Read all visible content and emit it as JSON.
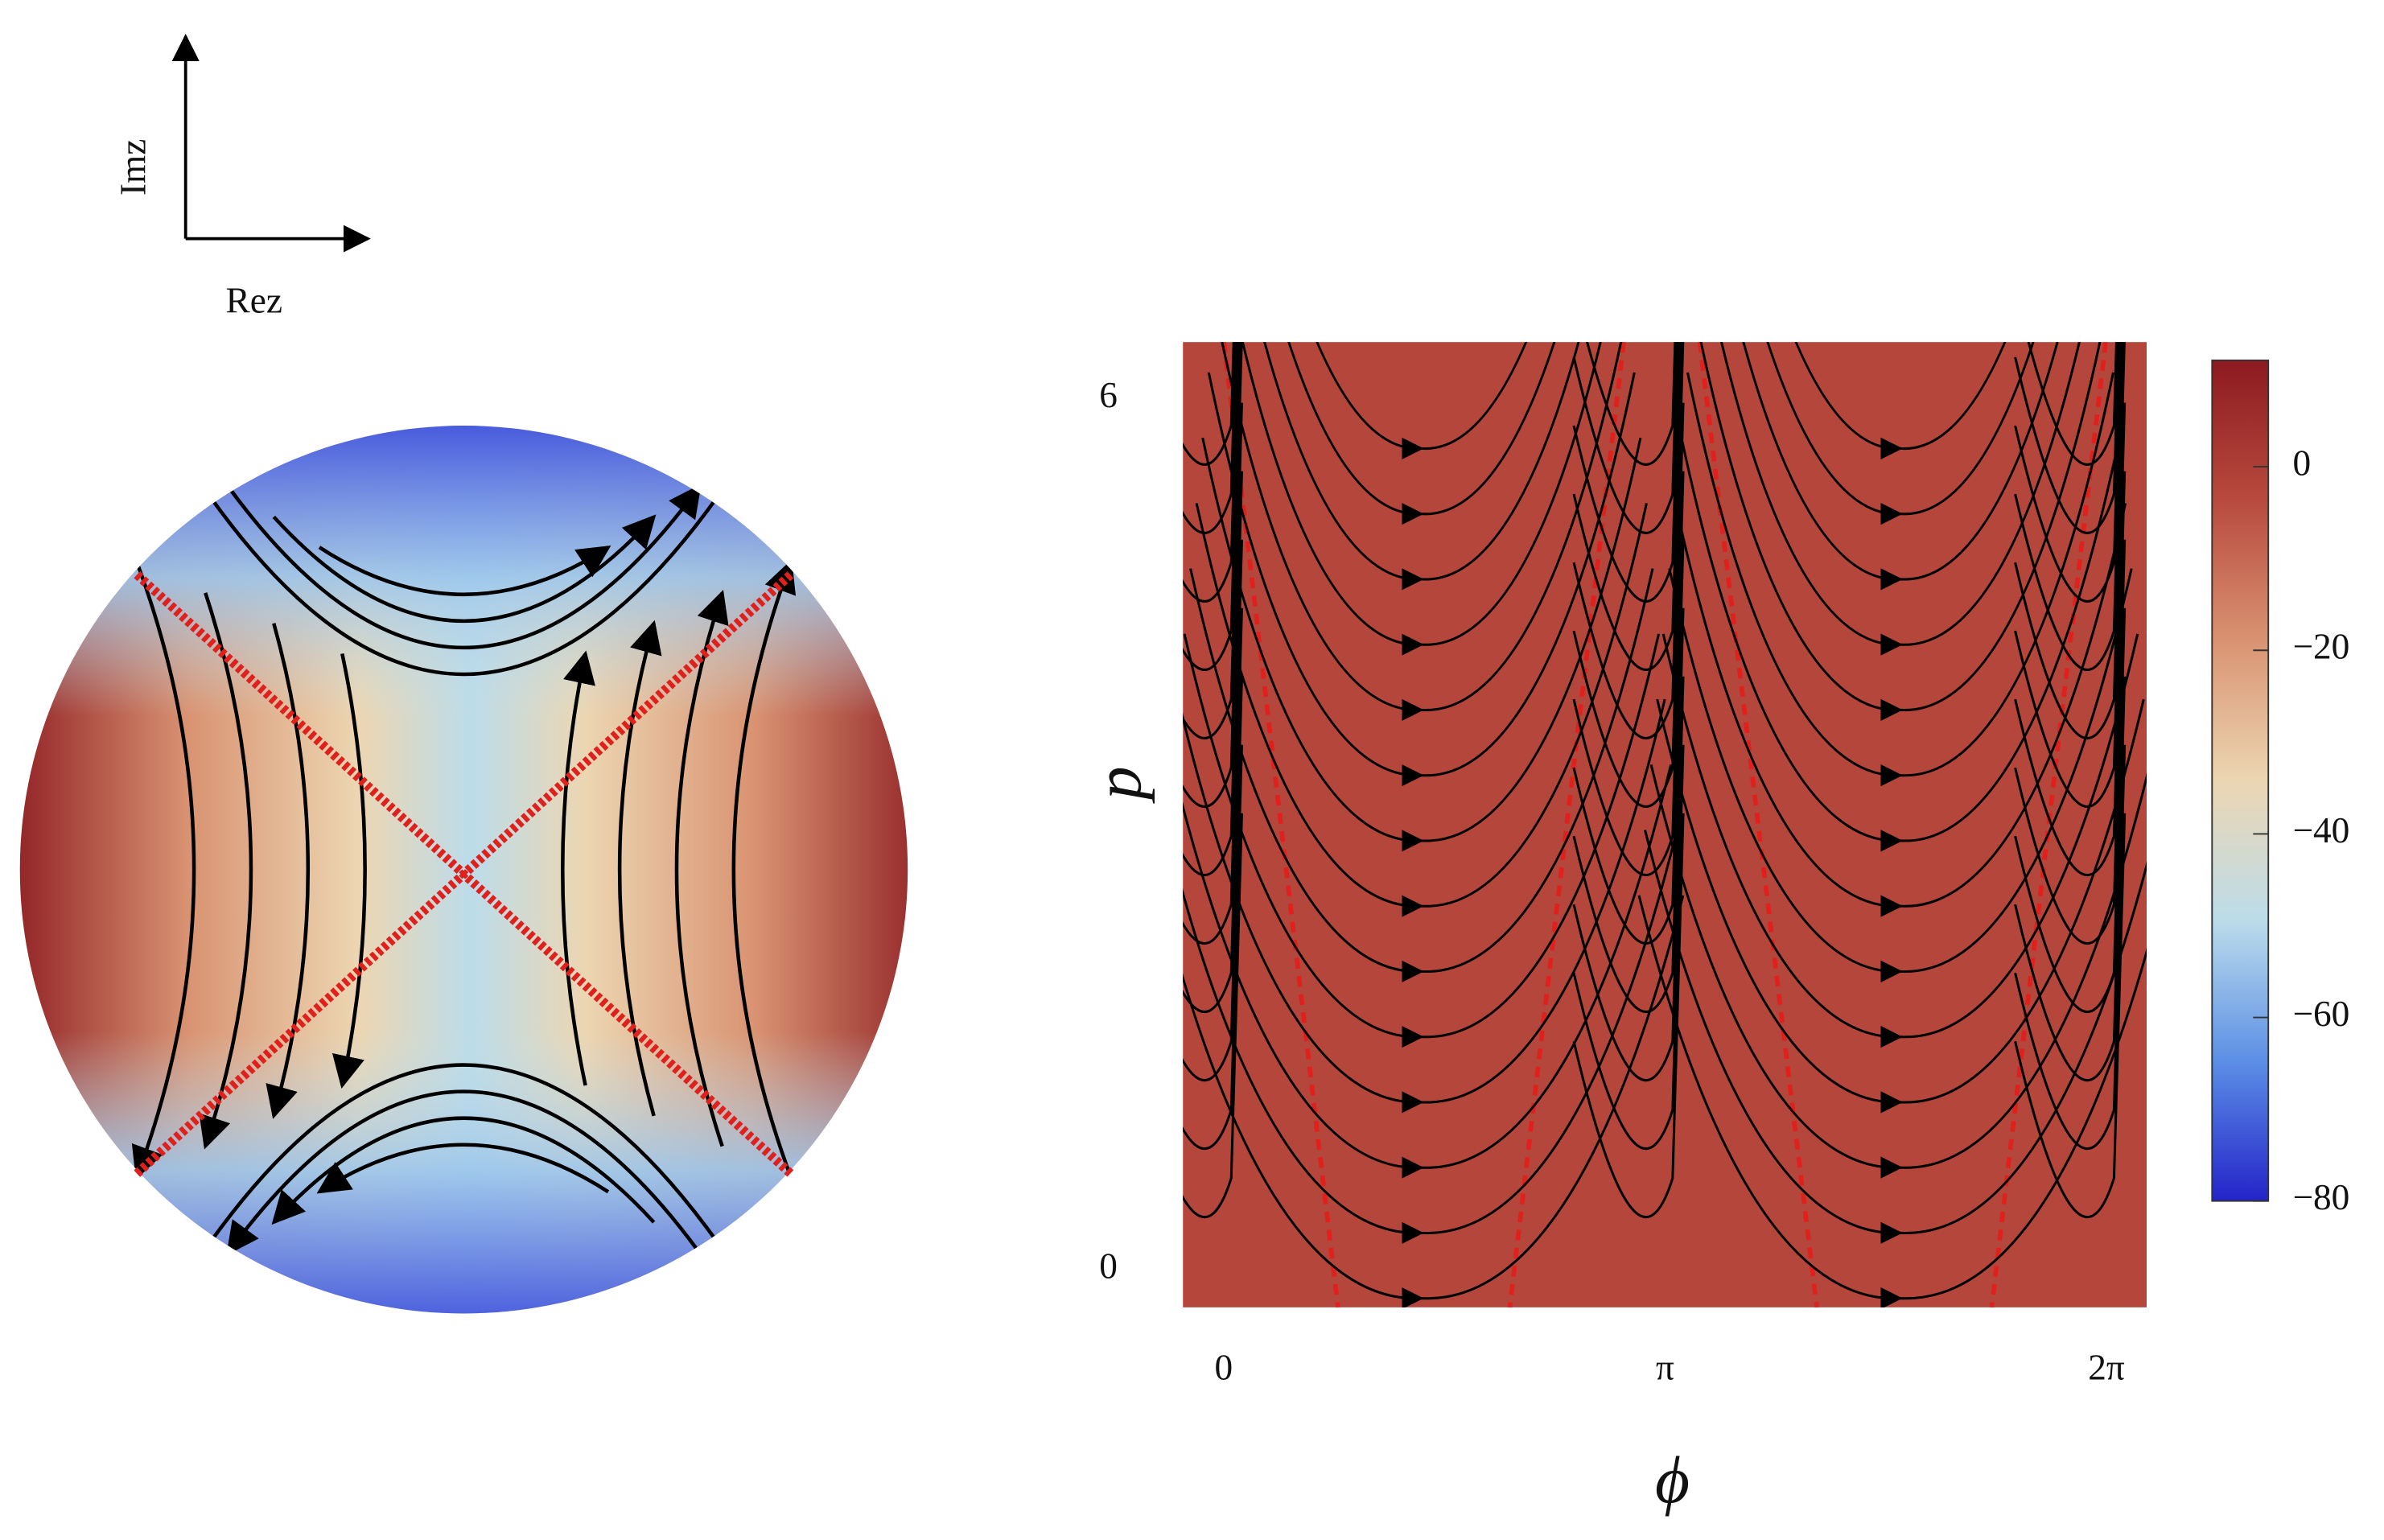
{
  "chart_data": [
    {
      "type": "disk-flow",
      "xlabel": "Rez",
      "ylabel": "Imz"
    },
    {
      "type": "heatmap",
      "xlabel": "ϕ",
      "ylabel": "p",
      "xlim": [
        -0.29,
        6.57
      ],
      "xticks": [
        {
          "value": 0,
          "label": "0"
        },
        {
          "value": 3.14159,
          "label": "π"
        },
        {
          "value": 6.28319,
          "label": "2π"
        }
      ],
      "ylim": [
        -0.26,
        6.39
      ],
      "yticks": [
        0,
        6
      ],
      "zlim": [
        -80,
        11.6
      ],
      "zticks": [
        0,
        {
          "value": -20,
          "label": "−20"
        },
        {
          "value": -40,
          "label": "−40"
        },
        {
          "value": -60,
          "label": "−60"
        },
        {
          "value": -80,
          "label": "−80"
        }
      ],
      "colormap": [
        "#2424c8",
        "#5c8fe6",
        "#bcdcea",
        "#ecd6b2",
        "#d99372",
        "#b84a3e",
        "#8c1a20"
      ]
    }
  ]
}
